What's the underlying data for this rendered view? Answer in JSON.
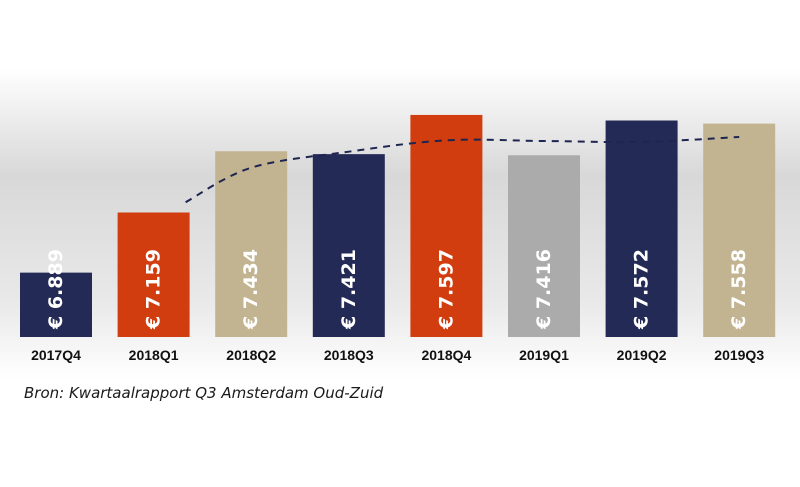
{
  "chart_data": {
    "type": "bar",
    "categories": [
      "2017Q4",
      "2018Q1",
      "2018Q2",
      "2018Q3",
      "2018Q4",
      "2019Q1",
      "2019Q2",
      "2019Q3"
    ],
    "values": [
      6889,
      7159,
      7434,
      7421,
      7597,
      7416,
      7572,
      7558
    ],
    "value_labels": [
      "€ 6.889",
      "€ 7.159",
      "€ 7.434",
      "€ 7.421",
      "€ 7.597",
      "€ 7.416",
      "€ 7.572",
      "€ 7.558"
    ],
    "bar_colors": [
      "#232a56",
      "#d13d0f",
      "#c3b491",
      "#232a56",
      "#d13d0f",
      "#ababab",
      "#232a56",
      "#c3b491"
    ],
    "trend": {
      "style": "dashed",
      "color": "#1d2550",
      "x": [
        "2018Q1",
        "2018Q2",
        "2018Q3",
        "2018Q4",
        "2019Q1",
        "2019Q2",
        "2019Q3"
      ],
      "values": [
        7205,
        7360,
        7432,
        7483,
        7480,
        7476,
        7498
      ]
    },
    "ylim": [
      6600,
      7700
    ],
    "grid": false,
    "legend": "none",
    "title": "",
    "xlabel": "",
    "ylabel": ""
  },
  "source_text": "Bron: Kwartaalrapport Q3 Amsterdam Oud-Zuid"
}
